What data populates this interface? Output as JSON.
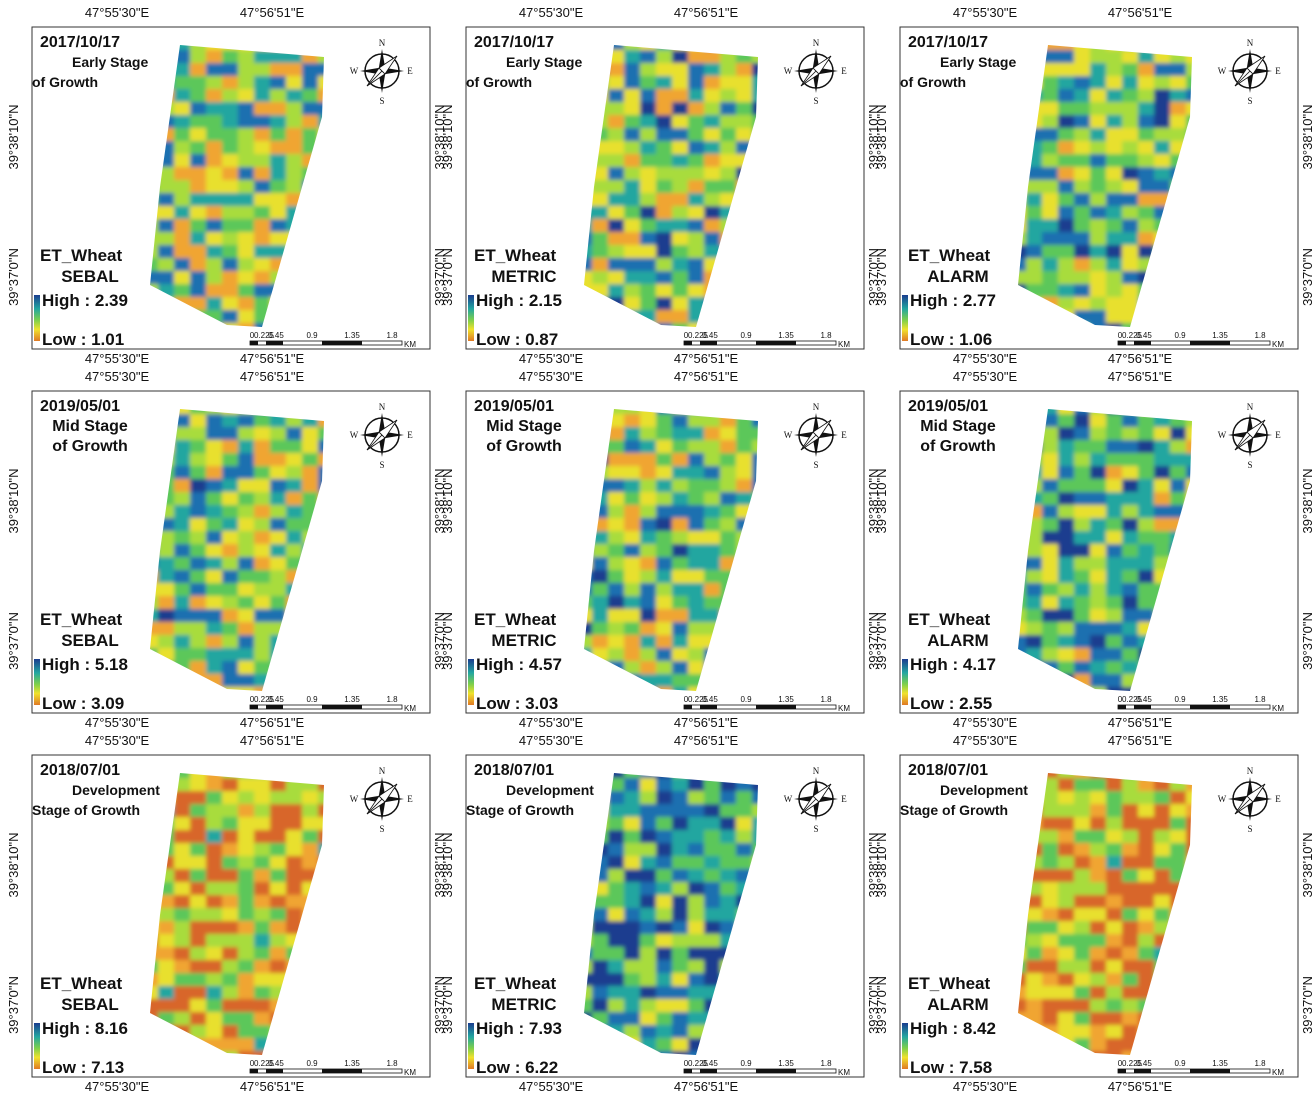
{
  "coordinates": {
    "lon": [
      "47°55'30\"E",
      "47°56'51\"E"
    ],
    "lat": [
      "39°38'10\"N",
      "39°37'0\"N"
    ]
  },
  "compass": {
    "n": "N",
    "e": "E",
    "s": "S",
    "w": "W"
  },
  "scale_bar": {
    "ticks": [
      "0",
      "0.225",
      "0.45",
      "0.9",
      "1.35",
      "1.8"
    ],
    "unit": "KM"
  },
  "panels": [
    {
      "date": "2017/10/17",
      "stage": [
        "Early Stage",
        "of Growth"
      ],
      "variable": "ET_Wheat",
      "model": "SEBAL",
      "high": "High : 2.39",
      "low": "Low : 1.01"
    },
    {
      "date": "2017/10/17",
      "stage": [
        "Early Stage",
        "of Growth"
      ],
      "variable": "ET_Wheat",
      "model": "METRIC",
      "high": "High : 2.15",
      "low": "Low : 0.87"
    },
    {
      "date": "2017/10/17",
      "stage": [
        "Early Stage",
        "of Growth"
      ],
      "variable": "ET_Wheat",
      "model": "ALARM",
      "high": "High : 2.77",
      "low": "Low : 1.06"
    },
    {
      "date": "2019/05/01",
      "stage": [
        "Mid Stage",
        "of Growth"
      ],
      "variable": "ET_Wheat",
      "model": "SEBAL",
      "high": "High : 5.18",
      "low": "Low : 3.09"
    },
    {
      "date": "2019/05/01",
      "stage": [
        "Mid Stage",
        "of Growth"
      ],
      "variable": "ET_Wheat",
      "model": "METRIC",
      "high": "High : 4.57",
      "low": "Low : 3.03"
    },
    {
      "date": "2019/05/01",
      "stage": [
        "Mid Stage",
        "of Growth"
      ],
      "variable": "ET_Wheat",
      "model": "ALARM",
      "high": "High : 4.17",
      "low": "Low : 2.55"
    },
    {
      "date": "2018/07/01",
      "stage": [
        "Development",
        "Stage of Growth"
      ],
      "variable": "ET_Wheat",
      "model": "SEBAL",
      "high": "High : 8.16",
      "low": "Low : 7.13"
    },
    {
      "date": "2018/07/01",
      "stage": [
        "Development",
        "Stage of Growth"
      ],
      "variable": "ET_Wheat",
      "model": "METRIC",
      "high": "High : 7.93",
      "low": "Low : 6.22"
    },
    {
      "date": "2018/07/01",
      "stage": [
        "Development",
        "Stage of Growth"
      ],
      "variable": "ET_Wheat",
      "model": "ALARM",
      "high": "High : 8.42",
      "low": "Low : 7.58"
    }
  ]
}
